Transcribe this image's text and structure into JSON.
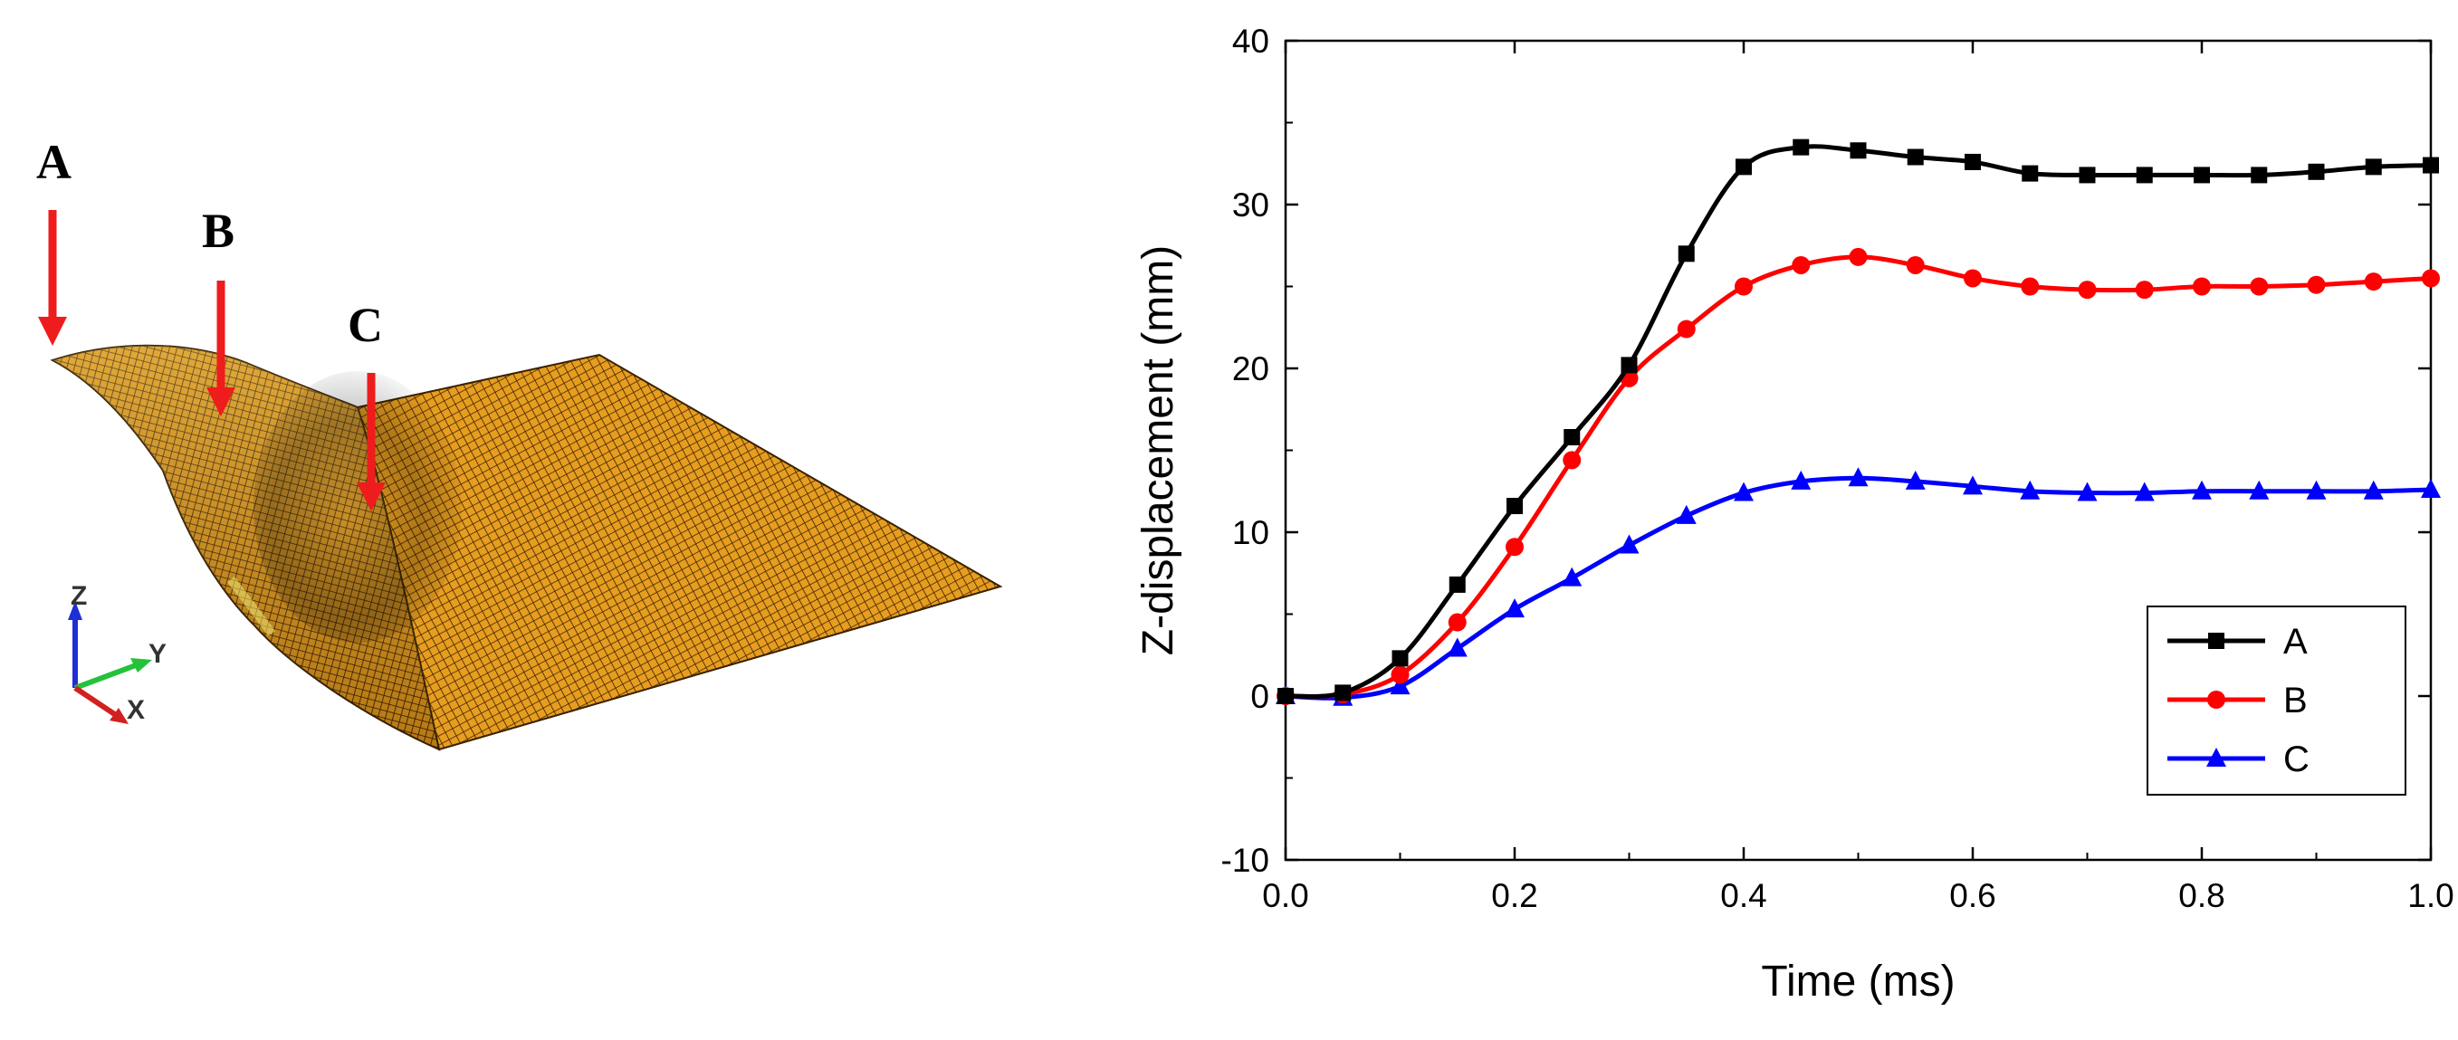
{
  "mesh_figure": {
    "points": [
      {
        "label": "A"
      },
      {
        "label": "B"
      },
      {
        "label": "C"
      }
    ],
    "arrow_color": "#ee1c1c",
    "mesh_color": "#e79d1f",
    "axes_triad": {
      "z": "Z",
      "y": "Y",
      "x": "X"
    }
  },
  "chart_data": {
    "type": "line",
    "xlabel": "Time (ms)",
    "ylabel": "Z-displacement (mm)",
    "xlim": [
      0.0,
      1.0
    ],
    "ylim": [
      -10,
      40
    ],
    "xticks": [
      0.0,
      0.2,
      0.4,
      0.6,
      0.8,
      1.0
    ],
    "xtick_labels": [
      "0.0",
      "0.2",
      "0.4",
      "0.6",
      "0.8",
      "1.0"
    ],
    "yticks": [
      -10,
      0,
      10,
      20,
      30,
      40
    ],
    "ytick_labels": [
      "-10",
      "0",
      "10",
      "20",
      "30",
      "40"
    ],
    "legend_position": "lower-right",
    "x": [
      0,
      0.05,
      0.1,
      0.15,
      0.2,
      0.25,
      0.3,
      0.35,
      0.4,
      0.45,
      0.5,
      0.55,
      0.6,
      0.65,
      0.7,
      0.75,
      0.8,
      0.85,
      0.9,
      0.95,
      1.0
    ],
    "series": [
      {
        "name": "A",
        "color": "#000000",
        "marker": "square",
        "values": [
          0,
          0.2,
          2.3,
          6.8,
          11.6,
          15.8,
          20.2,
          27.0,
          32.3,
          33.5,
          33.3,
          32.9,
          32.6,
          31.9,
          31.8,
          31.8,
          31.8,
          31.8,
          32.0,
          32.3,
          32.4
        ]
      },
      {
        "name": "B",
        "color": "#ff0000",
        "marker": "circle",
        "values": [
          0,
          0.1,
          1.3,
          4.5,
          9.1,
          14.4,
          19.4,
          22.4,
          25.0,
          26.3,
          26.8,
          26.3,
          25.5,
          25.0,
          24.8,
          24.8,
          25.0,
          25.0,
          25.1,
          25.3,
          25.5
        ]
      },
      {
        "name": "C",
        "color": "#0000ff",
        "marker": "triangle",
        "values": [
          0,
          -0.1,
          0.6,
          2.9,
          5.3,
          7.2,
          9.2,
          11.0,
          12.4,
          13.1,
          13.3,
          13.1,
          12.8,
          12.5,
          12.4,
          12.4,
          12.5,
          12.5,
          12.5,
          12.5,
          12.6
        ]
      }
    ]
  }
}
